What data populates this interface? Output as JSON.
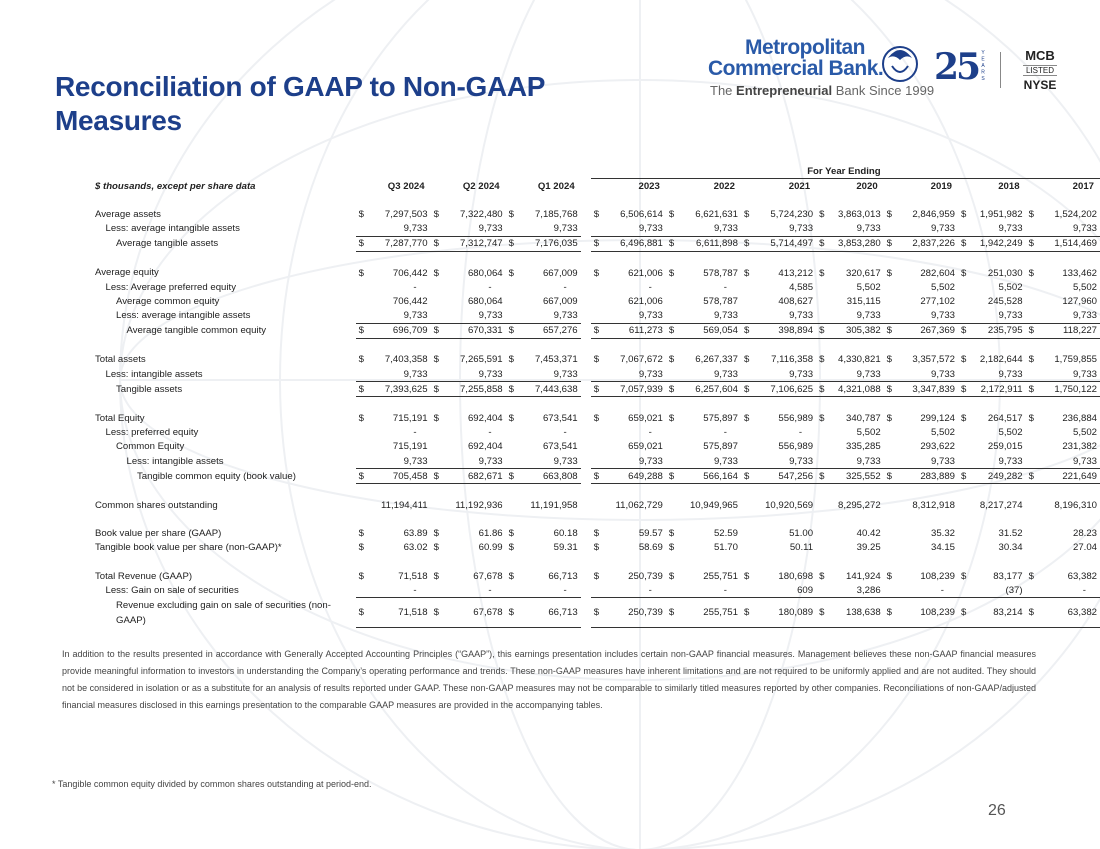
{
  "header": {
    "title": "Reconciliation of GAAP to Non-GAAP Measures",
    "logo": {
      "name_line1": "Metropolitan",
      "name_line2": "Commercial Bank.",
      "tagline": [
        "The",
        "Entrepreneurial",
        "Bank Since 1999"
      ],
      "anniversary": "25",
      "anniversary_unit": "YEARS",
      "exchange": [
        "MCB",
        "LISTED",
        "NYSE"
      ]
    }
  },
  "table": {
    "group_header": "For Year Ending",
    "columns": [
      "$ thousands, except per share data",
      "Q3 2024",
      "Q2 2024",
      "Q1 2024",
      "2023",
      "2022",
      "2021",
      "2020",
      "2019",
      "2018",
      "2017"
    ],
    "sections": [
      {
        "rows": [
          {
            "label": "Average assets",
            "indent": 0,
            "values": [
              "$ 7,297,503",
              "$ 7,322,480",
              "$ 7,185,768",
              "$ 6,506,614",
              "$ 6,621,631",
              "$ 5,724,230",
              "$ 3,863,013",
              "$ 2,846,959",
              "$ 1,951,982",
              "$ 1,524,202"
            ]
          },
          {
            "label": "Less: average intangible assets",
            "indent": 1,
            "values": [
              "9,733",
              "9,733",
              "9,733",
              "9,733",
              "9,733",
              "9,733",
              "9,733",
              "9,733",
              "9,733",
              "9,733"
            ]
          },
          {
            "label": "Average tangible assets",
            "indent": 2,
            "underline": true,
            "values": [
              "$ 7,287,770",
              "$ 7,312,747",
              "$ 7,176,035",
              "$ 6,496,881",
              "$ 6,611,898",
              "$ 5,714,497",
              "$ 3,853,280",
              "$ 2,837,226",
              "$ 1,942,249",
              "$ 1,514,469"
            ]
          }
        ]
      },
      {
        "rows": [
          {
            "label": "Average equity",
            "indent": 0,
            "values": [
              "$ 706,442",
              "$ 680,064",
              "$ 667,009",
              "$ 621,006",
              "$ 578,787",
              "$ 413,212",
              "$ 320,617",
              "$ 282,604",
              "$ 251,030",
              "$ 133,462"
            ]
          },
          {
            "label": "Less: Average preferred equity",
            "indent": 1,
            "values": [
              "-",
              "-",
              "-",
              "-",
              "-",
              "4,585",
              "5,502",
              "5,502",
              "5,502",
              "5,502"
            ]
          },
          {
            "label": "Average common equity",
            "indent": 2,
            "values": [
              "706,442",
              "680,064",
              "667,009",
              "621,006",
              "578,787",
              "408,627",
              "315,115",
              "277,102",
              "245,528",
              "127,960"
            ]
          },
          {
            "label": "Less: average intangible assets",
            "indent": 2,
            "values": [
              "9,733",
              "9,733",
              "9,733",
              "9,733",
              "9,733",
              "9,733",
              "9,733",
              "9,733",
              "9,733",
              "9,733"
            ]
          },
          {
            "label": "Average tangible common equity",
            "indent": 3,
            "underline": true,
            "values": [
              "$ 696,709",
              "$ 670,331",
              "$ 657,276",
              "$ 611,273",
              "$ 569,054",
              "$ 398,894",
              "$ 305,382",
              "$ 267,369",
              "$ 235,795",
              "$ 118,227"
            ]
          }
        ]
      },
      {
        "rows": [
          {
            "label": "Total assets",
            "indent": 0,
            "values": [
              "$ 7,403,358",
              "$ 7,265,591",
              "$ 7,453,371",
              "$ 7,067,672",
              "$ 6,267,337",
              "$ 7,116,358",
              "$ 4,330,821",
              "$ 3,357,572",
              "$ 2,182,644",
              "$ 1,759,855"
            ]
          },
          {
            "label": "Less: intangible assets",
            "indent": 1,
            "values": [
              "9,733",
              "9,733",
              "9,733",
              "9,733",
              "9,733",
              "9,733",
              "9,733",
              "9,733",
              "9,733",
              "9,733"
            ]
          },
          {
            "label": "Tangible assets",
            "indent": 2,
            "underline": true,
            "values": [
              "$ 7,393,625",
              "$ 7,255,858",
              "$ 7,443,638",
              "$ 7,057,939",
              "$ 6,257,604",
              "$ 7,106,625",
              "$ 4,321,088",
              "$ 3,347,839",
              "$ 2,172,911",
              "$ 1,750,122"
            ]
          }
        ]
      },
      {
        "rows": [
          {
            "label": "Total Equity",
            "indent": 0,
            "values": [
              "$ 715,191",
              "$ 692,404",
              "$ 673,541",
              "$ 659,021",
              "$ 575,897",
              "$ 556,989",
              "$ 340,787",
              "$ 299,124",
              "$ 264,517",
              "$ 236,884"
            ]
          },
          {
            "label": "Less: preferred equity",
            "indent": 1,
            "values": [
              "-",
              "-",
              "-",
              "-",
              "-",
              "-",
              "5,502",
              "5,502",
              "5,502",
              "5,502"
            ]
          },
          {
            "label": "Common Equity",
            "indent": 2,
            "values": [
              "715,191",
              "692,404",
              "673,541",
              "659,021",
              "575,897",
              "556,989",
              "335,285",
              "293,622",
              "259,015",
              "231,382"
            ]
          },
          {
            "label": "Less: intangible assets",
            "indent": 3,
            "values": [
              "9,733",
              "9,733",
              "9,733",
              "9,733",
              "9,733",
              "9,733",
              "9,733",
              "9,733",
              "9,733",
              "9,733"
            ]
          },
          {
            "label": "Tangible common equity (book value)",
            "indent": 4,
            "underline": true,
            "values": [
              "$ 705,458",
              "$ 682,671",
              "$ 663,808",
              "$ 649,288",
              "$ 566,164",
              "$ 547,256",
              "$ 325,552",
              "$ 283,889",
              "$ 249,282",
              "$ 221,649"
            ]
          }
        ]
      },
      {
        "rows": [
          {
            "label": "Common shares outstanding",
            "indent": 0,
            "values": [
              "11,194,411",
              "11,192,936",
              "11,191,958",
              "11,062,729",
              "10,949,965",
              "10,920,569",
              "8,295,272",
              "8,312,918",
              "8,217,274",
              "8,196,310"
            ]
          }
        ]
      },
      {
        "rows": [
          {
            "label": "Book value per share (GAAP)",
            "indent": 0,
            "values": [
              "$ 63.89",
              "$ 61.86",
              "$ 60.18",
              "$ 59.57",
              "$ 52.59",
              "51.00",
              "40.42",
              "35.32",
              "31.52",
              "28.23"
            ]
          },
          {
            "label": "Tangible book value per share (non-GAAP)*",
            "indent": 0,
            "values": [
              "$ 63.02",
              "$ 60.99",
              "$ 59.31",
              "$ 58.69",
              "$ 51.70",
              "50.11",
              "39.25",
              "34.15",
              "30.34",
              "27.04"
            ]
          }
        ]
      },
      {
        "rows": [
          {
            "label": "Total Revenue (GAAP)",
            "indent": 0,
            "values": [
              "$ 71,518",
              "$ 67,678",
              "$ 66,713",
              "$ 250,739",
              "$ 255,751",
              "$ 180,698",
              "$ 141,924",
              "$ 108,239",
              "$ 83,177",
              "$ 63,382"
            ]
          },
          {
            "label": "Less: Gain on sale of securities",
            "indent": 1,
            "values": [
              "-",
              "-",
              "-",
              "-",
              "-",
              "609",
              "3,286",
              "-",
              "(37)",
              "-"
            ]
          },
          {
            "label": "Revenue excluding gain on sale of securities (non-GAAP)",
            "indent": 2,
            "underline": true,
            "values": [
              "$ 71,518",
              "$ 67,678",
              "$ 66,713",
              "$ 250,739",
              "$ 255,751",
              "$ 180,089",
              "$ 138,638",
              "$ 108,239",
              "$ 83,214",
              "$ 63,382"
            ]
          }
        ]
      }
    ]
  },
  "footer": {
    "disclosure": "In addition to the results presented in accordance with Generally Accepted Accounting Principles (“GAAP”), this earnings presentation includes certain non-GAAP financial measures. Management believes these non-GAAP financial measures provide meaningful information to investors in understanding the Company’s operating performance and trends. These non-GAAP measures have inherent limitations and are not required to be uniformly applied and are not audited. They should not be considered in isolation or as a substitute for an analysis of results reported under GAAP. These non-GAAP measures may not be comparable to similarly titled measures reported by other companies. Reconciliations of non-GAAP/adjusted financial measures disclosed in this earnings presentation to the comparable GAAP measures are provided in the accompanying tables.",
    "footnote": "* Tangible common equity divided by common shares outstanding at period-end.",
    "page_number": "26"
  }
}
